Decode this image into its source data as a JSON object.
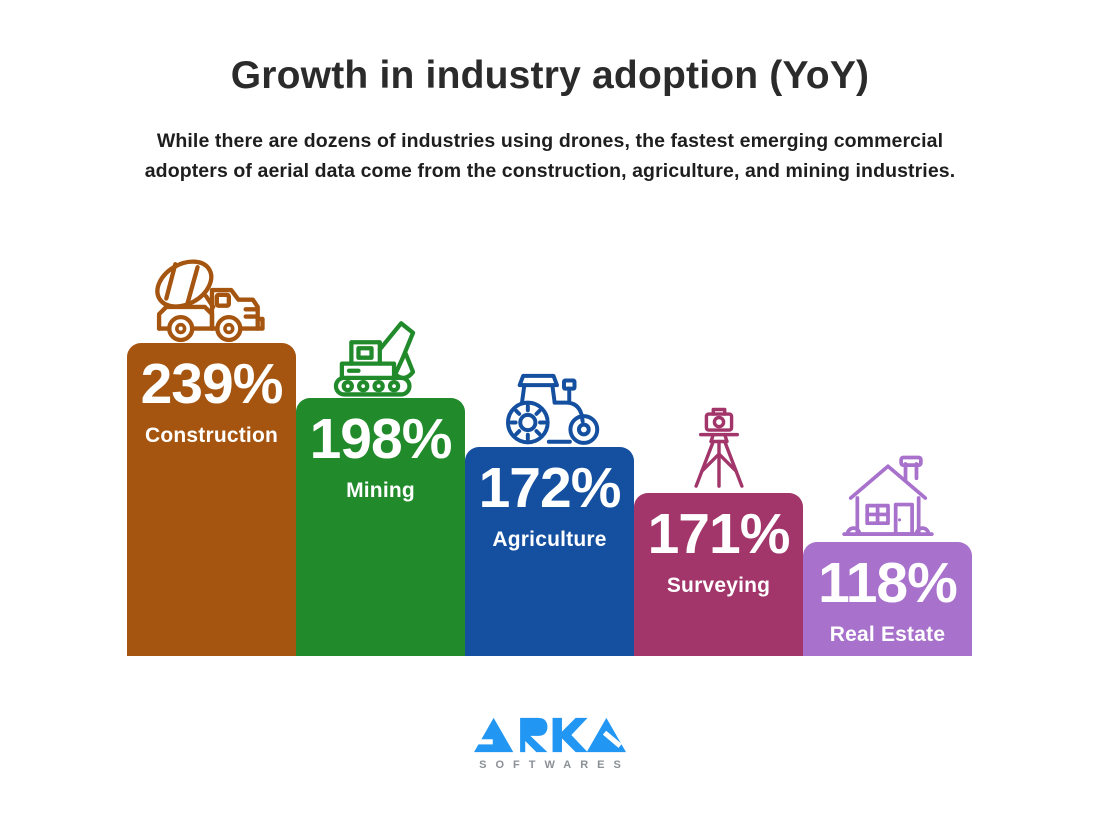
{
  "title": "Growth in industry adoption (YoY)",
  "subtitle": {
    "line1": "While there are dozens of industries using drones, the fastest emerging commercial",
    "line2": "adopters of aerial data come from the construction, agriculture, and mining industries."
  },
  "chart_data": {
    "type": "bar",
    "title": "Growth in industry adoption (YoY)",
    "unit": "% YoY growth",
    "categories": [
      "Construction",
      "Mining",
      "Agriculture",
      "Surveying",
      "Real Estate"
    ],
    "values": [
      239,
      198,
      172,
      171,
      118
    ],
    "value_labels": [
      "239%",
      "198%",
      "172%",
      "171%",
      "118%"
    ],
    "bar_colors": [
      "#a5550f",
      "#218a2b",
      "#14509f",
      "#a23569",
      "#a771cc"
    ],
    "icons": [
      "cement-mixer-truck-icon",
      "excavator-icon",
      "tractor-icon",
      "survey-tripod-icon",
      "house-icon"
    ],
    "legend": "none",
    "axes": "none",
    "value_label_position": "inside-top of each bar",
    "sorted": "descending left to right"
  },
  "footer": {
    "logo_text": "ARKA",
    "logo_subtext": "SOFTWARES",
    "logo_color": "#2196f3",
    "logo_subtext_color": "#8a9096"
  }
}
